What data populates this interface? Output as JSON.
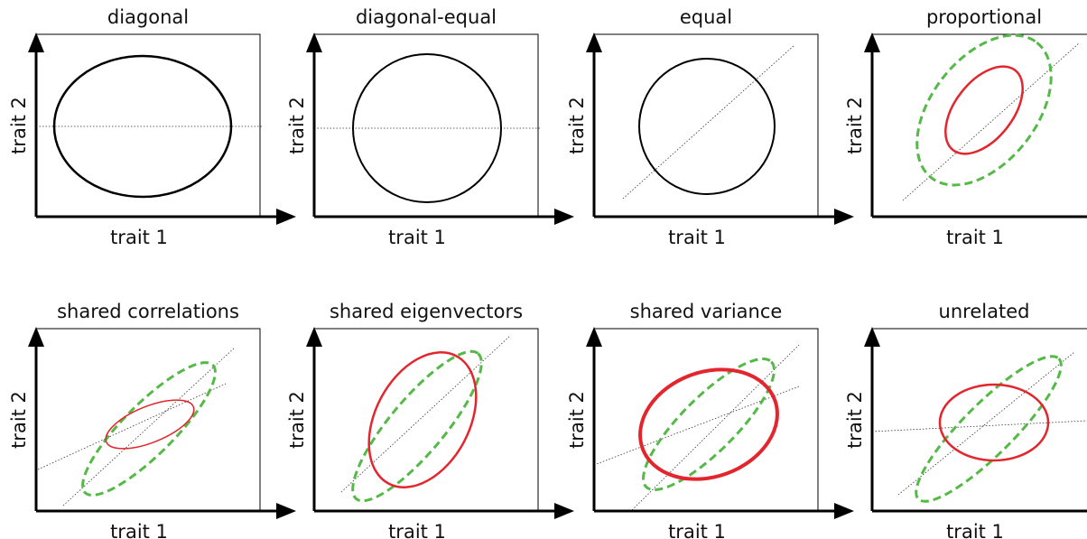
{
  "panels": [
    {
      "title": "diagonal",
      "x_label": "trait 1",
      "y_label": "trait 2"
    },
    {
      "title": "diagonal-equal",
      "x_label": "trait 1",
      "y_label": "trait 2"
    },
    {
      "title": "equal",
      "x_label": "trait 1",
      "y_label": "trait 2"
    },
    {
      "title": "proportional",
      "x_label": "trait 1",
      "y_label": "trait 2"
    },
    {
      "title": "shared correlations",
      "x_label": "trait 1",
      "y_label": "trait 2"
    },
    {
      "title": "shared eigenvectors",
      "x_label": "trait 1",
      "y_label": "trait 2"
    },
    {
      "title": "shared variance",
      "x_label": "trait 1",
      "y_label": "trait 2"
    },
    {
      "title": "unrelated",
      "x_label": "trait 1",
      "y_label": "trait 2"
    }
  ]
}
